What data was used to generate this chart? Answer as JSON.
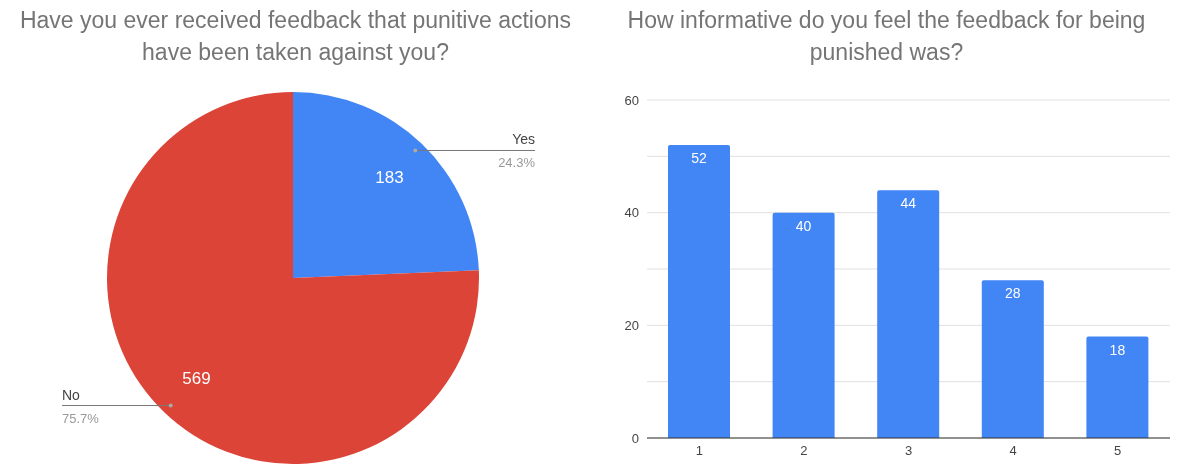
{
  "chart_data": [
    {
      "type": "pie",
      "title": "Have you ever received feedback that punitive actions have been taken against you?",
      "categories": [
        "Yes",
        "No"
      ],
      "values": [
        183,
        569
      ],
      "colors": [
        "#4285f4",
        "#db4437"
      ],
      "data_labels": true,
      "annotations": [
        {
          "text": "24.3%",
          "x": "Yes"
        },
        {
          "text": "75.7%",
          "x": "No"
        }
      ]
    },
    {
      "type": "bar",
      "title": "How informative do you feel the feedback for being punished was?",
      "categories": [
        "1",
        "2",
        "3",
        "4",
        "5"
      ],
      "values": [
        52,
        40,
        44,
        28,
        18
      ],
      "color": "#4285f4",
      "data_labels": true,
      "ylim": [
        0,
        60
      ],
      "yticks": [
        0,
        {
          "value": 10,
          "label": null
        },
        20,
        {
          "value": 30,
          "label": null
        },
        40,
        {
          "value": 50,
          "label": null
        },
        60
      ],
      "grid": "y"
    }
  ]
}
